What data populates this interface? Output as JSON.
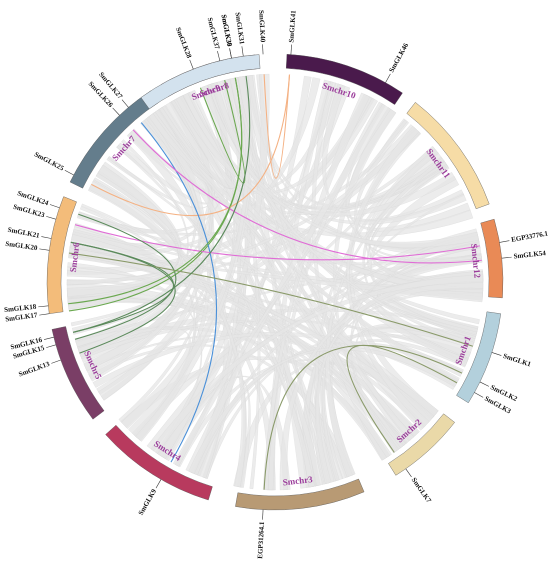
{
  "chromosomes": [
    {
      "name": "Smchr1",
      "color": "#b3d0dc",
      "label_color": "#9b3c9b"
    },
    {
      "name": "Smchr2",
      "color": "#ead9a8",
      "label_color": "#9b3c9b"
    },
    {
      "name": "Smchr3",
      "color": "#b89a74",
      "label_color": "#9b3c9b"
    },
    {
      "name": "Smchr4",
      "color": "#b83a5e",
      "label_color": "#9b3c9b"
    },
    {
      "name": "Smchr5",
      "color": "#7a3e66",
      "label_color": "#9b3c9b"
    },
    {
      "name": "Smchr6",
      "color": "#f3bc7a",
      "label_color": "#9b3c9b"
    },
    {
      "name": "Smchr7",
      "color": "#647d8c",
      "label_color": "#9b3c9b"
    },
    {
      "name": "Smchr8",
      "color": "#e35764",
      "label_color": "#9b3c9b"
    },
    {
      "name": "Smchr9",
      "color": "#d3e2ee",
      "label_color": "#9b3c9b"
    },
    {
      "name": "Smchr10",
      "color": "#4a1a4c",
      "label_color": "#9b3c9b"
    },
    {
      "name": "Smchr11",
      "color": "#f6dca6",
      "label_color": "#9b3c9b"
    },
    {
      "name": "Smchr12",
      "color": "#e98a56",
      "label_color": "#9b3c9b"
    }
  ],
  "genes": [
    {
      "name": "SmGLK1",
      "chromosome": "Smchr1"
    },
    {
      "name": "SmGLK2",
      "chromosome": "Smchr1"
    },
    {
      "name": "SmGLK3",
      "chromosome": "Smchr1"
    },
    {
      "name": "SmGLK7",
      "chromosome": "Smchr2"
    },
    {
      "name": "EGP31264.1",
      "chromosome": "Smchr3"
    },
    {
      "name": "SmGLK9",
      "chromosome": "Smchr4"
    },
    {
      "name": "SmGLK13",
      "chromosome": "Smchr5"
    },
    {
      "name": "SmGLK15",
      "chromosome": "Smchr5"
    },
    {
      "name": "SmGLK16",
      "chromosome": "Smchr5"
    },
    {
      "name": "SmGLK17",
      "chromosome": "Smchr6"
    },
    {
      "name": "SmGLK18",
      "chromosome": "Smchr6"
    },
    {
      "name": "SmGLK20",
      "chromosome": "Smchr6"
    },
    {
      "name": "SmGLK21",
      "chromosome": "Smchr6"
    },
    {
      "name": "SmGLK23",
      "chromosome": "Smchr6"
    },
    {
      "name": "SmGLK24",
      "chromosome": "Smchr6"
    },
    {
      "name": "SmGLK25",
      "chromosome": "Smchr7"
    },
    {
      "name": "SmGLK26",
      "chromosome": "Smchr7"
    },
    {
      "name": "SmGLK27",
      "chromosome": "Smchr7"
    },
    {
      "name": "SmGLK28",
      "chromosome": "Smchr8"
    },
    {
      "name": "SmGLK30",
      "chromosome": "Smchr8"
    },
    {
      "name": "SmGLK31",
      "chromosome": "Smchr8"
    },
    {
      "name": "SmGLK37",
      "chromosome": "Smchr9"
    },
    {
      "name": "SmGLK38",
      "chromosome": "Smchr9"
    },
    {
      "name": "SmGLK40",
      "chromosome": "Smchr10"
    },
    {
      "name": "SmGLK41",
      "chromosome": "Smchr10"
    },
    {
      "name": "SmGLK46",
      "chromosome": "Smchr10"
    },
    {
      "name": "EGP33776.1",
      "chromosome": "Smchr12"
    },
    {
      "name": "SmGLK54",
      "chromosome": "Smchr12"
    }
  ],
  "links": [
    {
      "from": "SmGLK37",
      "to": "SmGLK28",
      "color": "#6aa84f"
    },
    {
      "from": "SmGLK38",
      "to": "SmGLK17",
      "color": "#6aa84f"
    },
    {
      "from": "SmGLK40",
      "to": "SmGLK41",
      "color": "#f4b183"
    },
    {
      "from": "SmGLK41",
      "to": "SmGLK25",
      "color": "#f4b183"
    },
    {
      "from": "SmGLK27",
      "to": "SmGLK9",
      "color": "#4a90d9"
    },
    {
      "from": "SmGLK26",
      "to": "SmGLK54",
      "color": "#e06cd6"
    },
    {
      "from": "SmGLK23",
      "to": "EGP33776.1",
      "color": "#e06cd6"
    },
    {
      "from": "SmGLK24",
      "to": "SmGLK15",
      "color": "#5b8a5b"
    },
    {
      "from": "SmGLK21",
      "to": "SmGLK16",
      "color": "#5b8a5b"
    },
    {
      "from": "SmGLK20",
      "to": "SmGLK1",
      "color": "#8a9a6a"
    },
    {
      "from": "SmGLK2",
      "to": "EGP31264.1",
      "color": "#8a9a6a"
    },
    {
      "from": "SmGLK3",
      "to": "SmGLK7",
      "color": "#8a9a6a"
    },
    {
      "from": "SmGLK18",
      "to": "SmGLK30",
      "color": "#6aa84f"
    },
    {
      "from": "SmGLK16",
      "to": "SmGLK31",
      "color": "#5b8a5b"
    },
    {
      "from": "SmGLK13",
      "to": "SmGLK21",
      "color": "#5b8a5b"
    }
  ],
  "background_link_color": "#e6e6e6"
}
